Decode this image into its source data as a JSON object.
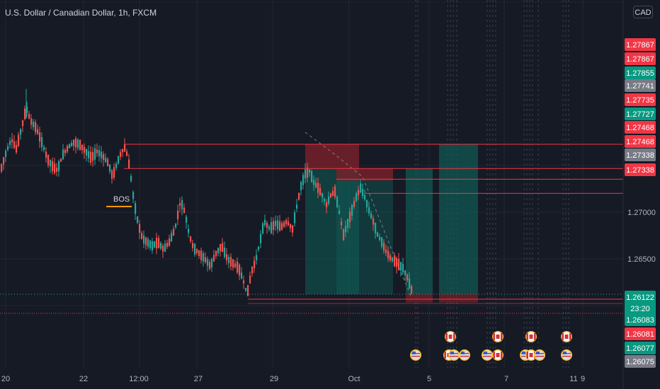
{
  "header": {
    "title": "U.S. Dollar / Canadian Dollar, 1h, FXCM",
    "currency_button": "CAD"
  },
  "annotation": {
    "bos_label": "BOS"
  },
  "countdown": "23:20",
  "colors": {
    "background": "#161a25",
    "bull": "#26a69a",
    "bear": "#ef5350",
    "level_line": "#f23645",
    "tp_zone": "#0f5d56",
    "sl_zone": "#7a2129",
    "bos_line": "#ff9800",
    "grid": "#222632",
    "text": "#b2b5be"
  },
  "chart_data": {
    "type": "candlestick",
    "symbol": "USDCAD",
    "timeframe": "1h",
    "x_ticks": [
      "20",
      "22",
      "12:00",
      "27",
      "29",
      "Oct",
      "5",
      "7",
      "9",
      "11"
    ],
    "y_ticks": [
      1.27,
      1.265
    ],
    "y_tick_labels": [
      "1.27000",
      "1.26500"
    ],
    "ylim": [
      1.2594,
      1.284
    ],
    "horizontal_levels": [
      1.27727,
      1.27468,
      1.27338,
      1.27338,
      1.26122,
      1.26083
    ],
    "price_labels": [
      {
        "value": "1.27867",
        "color": "#f23645"
      },
      {
        "value": "1.27867",
        "color": "#f23645"
      },
      {
        "value": "1.27855",
        "color": "#089981"
      },
      {
        "value": "1.27741",
        "color": "#787b86"
      },
      {
        "value": "1.27735",
        "color": "#f23645"
      },
      {
        "value": "1.27727",
        "color": "#089981"
      },
      {
        "value": "1.27468",
        "color": "#f23645"
      },
      {
        "value": "1.27468",
        "color": "#f23645"
      },
      {
        "value": "1.27338",
        "color": "#787b86"
      },
      {
        "value": "1.27338",
        "color": "#f23645"
      },
      {
        "value": "1.26122",
        "color": "#089981"
      },
      {
        "value": "1.26083",
        "color": "#089981"
      },
      {
        "value": "1.26081",
        "color": "#f23645"
      },
      {
        "value": "1.26077",
        "color": "#089981"
      },
      {
        "value": "1.26075",
        "color": "#787b86"
      }
    ],
    "price_path": [
      [
        0,
        1.2745
      ],
      [
        8,
        1.2765
      ],
      [
        15,
        1.2778
      ],
      [
        22,
        1.2768
      ],
      [
        30,
        1.2792
      ],
      [
        36,
        1.2812
      ],
      [
        42,
        1.2798
      ],
      [
        50,
        1.279
      ],
      [
        58,
        1.2775
      ],
      [
        66,
        1.2757
      ],
      [
        74,
        1.2748
      ],
      [
        80,
        1.2745
      ],
      [
        88,
        1.2762
      ],
      [
        96,
        1.277
      ],
      [
        104,
        1.2775
      ],
      [
        112,
        1.2772
      ],
      [
        120,
        1.2765
      ],
      [
        128,
        1.2758
      ],
      [
        136,
        1.2765
      ],
      [
        144,
        1.276
      ],
      [
        152,
        1.2752
      ],
      [
        158,
        1.2738
      ],
      [
        164,
        1.2752
      ],
      [
        170,
        1.2764
      ],
      [
        176,
        1.277
      ],
      [
        182,
        1.2748
      ],
      [
        188,
        1.2712
      ],
      [
        194,
        1.2688
      ],
      [
        200,
        1.2672
      ],
      [
        206,
        1.2668
      ],
      [
        214,
        1.2664
      ],
      [
        222,
        1.2668
      ],
      [
        230,
        1.266
      ],
      [
        238,
        1.2668
      ],
      [
        246,
        1.2682
      ],
      [
        254,
        1.2712
      ],
      [
        260,
        1.27
      ],
      [
        266,
        1.2676
      ],
      [
        272,
        1.2662
      ],
      [
        280,
        1.2656
      ],
      [
        288,
        1.265
      ],
      [
        296,
        1.2642
      ],
      [
        304,
        1.2656
      ],
      [
        312,
        1.2664
      ],
      [
        320,
        1.265
      ],
      [
        328,
        1.2645
      ],
      [
        336,
        1.264
      ],
      [
        342,
        1.2628
      ],
      [
        348,
        1.2612
      ],
      [
        354,
        1.2636
      ],
      [
        360,
        1.2648
      ],
      [
        366,
        1.2668
      ],
      [
        372,
        1.269
      ],
      [
        380,
        1.2682
      ],
      [
        388,
        1.2688
      ],
      [
        396,
        1.2684
      ],
      [
        404,
        1.269
      ],
      [
        412,
        1.2682
      ],
      [
        418,
        1.2706
      ],
      [
        424,
        1.2728
      ],
      [
        430,
        1.2741
      ],
      [
        436,
        1.2744
      ],
      [
        442,
        1.2732
      ],
      [
        448,
        1.2726
      ],
      [
        454,
        1.2718
      ],
      [
        460,
        1.2708
      ],
      [
        466,
        1.2718
      ],
      [
        472,
        1.2722
      ],
      [
        478,
        1.27
      ],
      [
        484,
        1.2676
      ],
      [
        490,
        1.2688
      ],
      [
        496,
        1.2702
      ],
      [
        502,
        1.2716
      ],
      [
        508,
        1.2726
      ],
      [
        514,
        1.2716
      ],
      [
        520,
        1.2702
      ],
      [
        526,
        1.269
      ],
      [
        532,
        1.2676
      ],
      [
        538,
        1.2668
      ],
      [
        544,
        1.2658
      ],
      [
        550,
        1.2651
      ],
      [
        556,
        1.2648
      ],
      [
        562,
        1.2644
      ],
      [
        568,
        1.264
      ],
      [
        574,
        1.263
      ],
      [
        580,
        1.2617
      ]
    ],
    "trade_setups": [
      {
        "type": "short",
        "entry": 1.27468,
        "stop": 1.27727,
        "target": 1.26122
      },
      {
        "type": "short",
        "entry": 1.27338,
        "stop": 1.27468,
        "target": 1.26122
      },
      {
        "type": "short",
        "entry": 1.27468,
        "stop": 1.26122,
        "target": 1.26083
      },
      {
        "type": "short",
        "entry": 1.27468,
        "stop": 1.26122,
        "target": 1.26083
      }
    ],
    "annotations": [
      "BOS"
    ],
    "grid": true,
    "event_markers": [
      "US",
      "CA",
      "CA",
      "US",
      "CA",
      "US",
      "CA",
      "US",
      "CA",
      "US"
    ]
  }
}
